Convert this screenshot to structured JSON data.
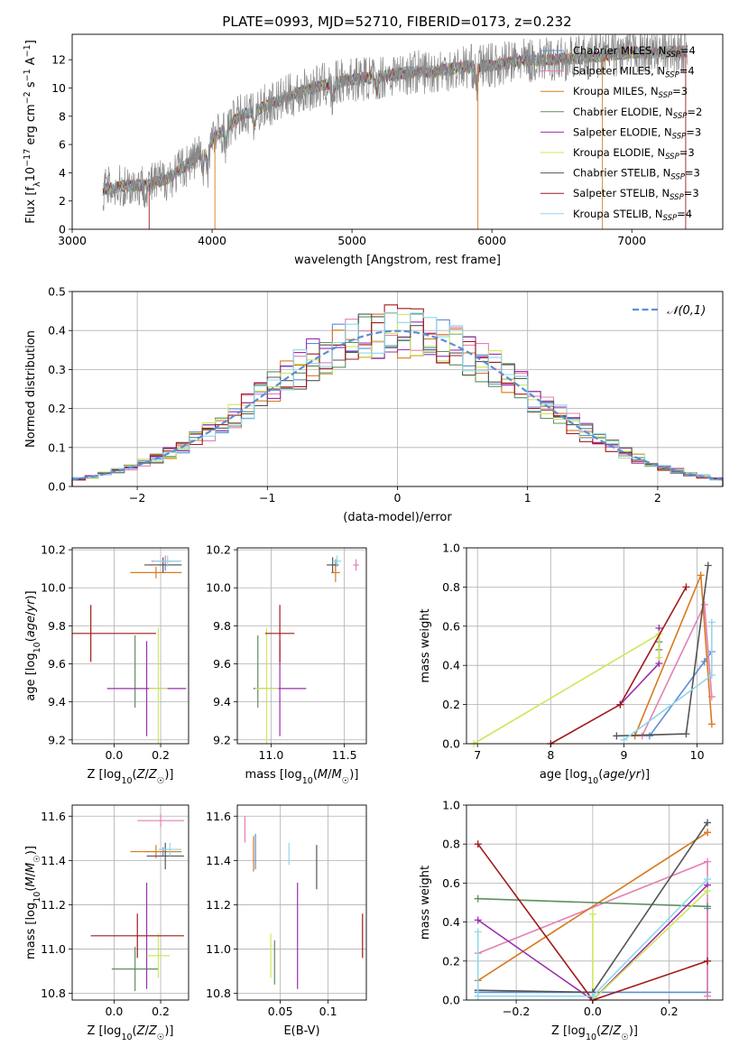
{
  "figure_title": "PLATE=0993, MJD=52710, FIBERID=0173, z=0.232",
  "colors": {
    "chab_miles": "#5b8ed6",
    "salp_miles": "#e57fb4",
    "krou_miles": "#d97a1f",
    "chab_elodie": "#5c8f5c",
    "salp_elodie": "#9b2fae",
    "krou_elodie": "#cce85a",
    "chab_stelib": "#555555",
    "salp_stelib": "#a01b1b",
    "krou_stelib": "#8fd8e8",
    "data": "#888888"
  },
  "chart_data": [
    {
      "id": "spectrum",
      "type": "line",
      "title": "PLATE=0993, MJD=52710, FIBERID=0173, z=0.232",
      "xlabel": "wavelength [Angstrom, rest frame]",
      "ylabel": "Flux [f_λ 10^-17 erg cm^-2 s^-1 A^-1]",
      "xlim": [
        3000,
        7650
      ],
      "ylim": [
        0,
        13.8
      ],
      "xticks": [
        3000,
        4000,
        5000,
        6000,
        7000
      ],
      "yticks": [
        0,
        2,
        4,
        6,
        8,
        10,
        12
      ],
      "continuum": {
        "x": [
          3220,
          3400,
          3550,
          3700,
          3850,
          3950,
          4050,
          4200,
          4400,
          4600,
          4800,
          5000,
          5200,
          5400,
          5600,
          5800,
          6000,
          6200,
          6400,
          6600,
          6800,
          7000,
          7200,
          7400
        ],
        "y": [
          2.8,
          3.1,
          3.1,
          3.7,
          4.8,
          5.8,
          6.8,
          8.0,
          8.8,
          9.6,
          10.2,
          10.6,
          10.8,
          11.1,
          11.2,
          11.5,
          11.6,
          11.9,
          12.0,
          12.1,
          12.3,
          12.5,
          12.5,
          12.6
        ]
      },
      "legend": [
        {
          "label": "Chabrier MILES, N_SSP=4",
          "color_key": "chab_miles"
        },
        {
          "label": "Salpeter MILES, N_SSP=4",
          "color_key": "salp_miles"
        },
        {
          "label": "Kroupa MILES, N_SSP=3",
          "color_key": "krou_miles"
        },
        {
          "label": "Chabrier ELODIE, N_SSP=2",
          "color_key": "chab_elodie"
        },
        {
          "label": "Salpeter ELODIE, N_SSP=3",
          "color_key": "salp_elodie"
        },
        {
          "label": "Kroupa ELODIE, N_SSP=3",
          "color_key": "krou_elodie"
        },
        {
          "label": "Chabrier STELIB, N_SSP=3",
          "color_key": "chab_stelib"
        },
        {
          "label": "Salpeter STELIB, N_SSP=3",
          "color_key": "salp_stelib"
        },
        {
          "label": "Kroupa STELIB, N_SSP=4",
          "color_key": "krou_stelib"
        }
      ],
      "legend_placement": "top-right"
    },
    {
      "id": "residuals",
      "type": "line",
      "xlabel": "(data-model)/error",
      "ylabel": "Normed distribution",
      "xlim": [
        -2.5,
        2.5
      ],
      "ylim": [
        0,
        0.5
      ],
      "xticks": [
        -2,
        -1,
        0,
        1,
        2
      ],
      "yticks": [
        0.0,
        0.1,
        0.2,
        0.3,
        0.4,
        0.5
      ],
      "grid": true,
      "bin_width": 0.1,
      "legend": [
        {
          "label": "𝒩(0,1)",
          "color": "#5b8ed6",
          "style": "dashed"
        }
      ],
      "legend_placement": "top-right"
    },
    {
      "id": "age_vs_Z",
      "type": "scatter",
      "xlabel": "Z [log10(Z/Z☉)]",
      "ylabel": "age [log10(age/yr)]",
      "xlim": [
        -0.18,
        0.32
      ],
      "ylim": [
        9.18,
        10.21
      ],
      "xticks": [
        0.0,
        0.2
      ],
      "yticks": [
        9.2,
        9.4,
        9.6,
        9.8,
        10.0,
        10.2
      ],
      "grid": true,
      "points": [
        {
          "k": "chab_miles",
          "x": 0.22,
          "y": 10.12,
          "xe": 0.07,
          "ye": 0.03
        },
        {
          "k": "salp_miles",
          "x": 0.22,
          "y": 10.14,
          "xe": 0.06,
          "ye": 0.03
        },
        {
          "k": "krou_miles",
          "x": 0.18,
          "y": 10.08,
          "xe": 0.11,
          "ye": 0.03
        },
        {
          "k": "chab_elodie",
          "x": 0.09,
          "y": 9.56,
          "xe": 0.0,
          "ye": 0.19
        },
        {
          "k": "salp_elodie",
          "x": 0.14,
          "y": 9.47,
          "xe": 0.17,
          "ye": 0.25
        },
        {
          "k": "krou_elodie",
          "x": 0.19,
          "y": 9.47,
          "xe": 0.04,
          "ye": 0.32
        },
        {
          "k": "chab_stelib",
          "x": 0.21,
          "y": 10.12,
          "xe": 0.08,
          "ye": 0.04
        },
        {
          "k": "salp_stelib",
          "x": -0.1,
          "y": 9.76,
          "xe": 0.28,
          "ye": 0.15
        },
        {
          "k": "krou_stelib",
          "x": 0.23,
          "y": 10.14,
          "xe": 0.06,
          "ye": 0.03
        }
      ]
    },
    {
      "id": "age_vs_mass",
      "type": "scatter",
      "xlabel": "mass [log10(M/M☉)]",
      "ylabel": "",
      "xlim": [
        10.77,
        11.65
      ],
      "ylim": [
        9.18,
        10.21
      ],
      "xticks": [
        11.0,
        11.5
      ],
      "yticks": [
        9.2,
        9.4,
        9.6,
        9.8,
        10.0,
        10.2
      ],
      "grid": true,
      "points": [
        {
          "k": "chab_miles",
          "x": 11.44,
          "y": 10.12,
          "xe": 0.02,
          "ye": 0.03
        },
        {
          "k": "salp_miles",
          "x": 11.58,
          "y": 10.12,
          "xe": 0.02,
          "ye": 0.03
        },
        {
          "k": "krou_miles",
          "x": 11.44,
          "y": 10.08,
          "xe": 0.03,
          "ye": 0.05
        },
        {
          "k": "chab_elodie",
          "x": 10.91,
          "y": 9.56,
          "xe": 0.0,
          "ye": 0.19
        },
        {
          "k": "salp_elodie",
          "x": 11.06,
          "y": 9.47,
          "xe": 0.18,
          "ye": 0.25
        },
        {
          "k": "krou_elodie",
          "x": 10.97,
          "y": 9.47,
          "xe": 0.08,
          "ye": 0.32
        },
        {
          "k": "chab_stelib",
          "x": 11.42,
          "y": 10.12,
          "xe": 0.04,
          "ye": 0.04
        },
        {
          "k": "salp_stelib",
          "x": 11.06,
          "y": 9.76,
          "xe": 0.1,
          "ye": 0.15
        },
        {
          "k": "krou_stelib",
          "x": 11.45,
          "y": 10.14,
          "xe": 0.03,
          "ye": 0.03
        }
      ]
    },
    {
      "id": "weight_vs_age",
      "type": "line",
      "xlabel": "age [log10(age/yr)]",
      "ylabel": "mass weight",
      "xlim": [
        6.85,
        10.35
      ],
      "ylim": [
        0,
        1
      ],
      "xticks": [
        7,
        8,
        9,
        10
      ],
      "yticks": [
        0.0,
        0.2,
        0.4,
        0.6,
        0.8,
        1.0
      ],
      "grid": true,
      "series": [
        {
          "k": "chab_miles",
          "x": [
            9.35,
            10.1,
            10.2
          ],
          "y": [
            0.04,
            0.42,
            0.47
          ]
        },
        {
          "k": "salp_miles",
          "x": [
            9.25,
            10.1,
            10.2
          ],
          "y": [
            0.04,
            0.71,
            0.24
          ]
        },
        {
          "k": "krou_miles",
          "x": [
            9.15,
            10.05,
            10.2
          ],
          "y": [
            0.04,
            0.86,
            0.1
          ]
        },
        {
          "k": "chab_elodie",
          "x": [
            9.48,
            9.48
          ],
          "y": [
            0.48,
            0.52
          ]
        },
        {
          "k": "salp_elodie",
          "x": [
            8.95,
            9.48,
            9.48
          ],
          "y": [
            0.2,
            0.41,
            0.59
          ]
        },
        {
          "k": "krou_elodie",
          "x": [
            6.95,
            9.48,
            9.48
          ],
          "y": [
            0.0,
            0.56,
            0.44
          ]
        },
        {
          "k": "chab_stelib",
          "x": [
            8.9,
            9.85,
            10.15
          ],
          "y": [
            0.04,
            0.05,
            0.91
          ]
        },
        {
          "k": "salp_stelib",
          "x": [
            8.0,
            8.95,
            9.85
          ],
          "y": [
            0.0,
            0.2,
            0.8
          ]
        },
        {
          "k": "krou_stelib",
          "x": [
            9.0,
            10.2,
            10.2
          ],
          "y": [
            0.02,
            0.35,
            0.62
          ]
        }
      ]
    },
    {
      "id": "mass_vs_Z",
      "type": "scatter",
      "xlabel": "Z [log10(Z/Z☉)]",
      "ylabel": "mass [log10(M/M☉)]",
      "xlim": [
        -0.18,
        0.32
      ],
      "ylim": [
        10.77,
        11.65
      ],
      "xticks": [
        0.0,
        0.2
      ],
      "yticks": [
        10.8,
        11.0,
        11.2,
        11.4,
        11.6
      ],
      "grid": true,
      "points": [
        {
          "k": "chab_miles",
          "x": 0.21,
          "y": 11.44,
          "xe": 0.08,
          "ye": 0.02
        },
        {
          "k": "salp_miles",
          "x": 0.2,
          "y": 11.58,
          "xe": 0.1,
          "ye": 0.03
        },
        {
          "k": "krou_miles",
          "x": 0.18,
          "y": 11.44,
          "xe": 0.11,
          "ye": 0.03
        },
        {
          "k": "chab_elodie",
          "x": 0.09,
          "y": 10.91,
          "xe": 0.1,
          "ye": 0.1
        },
        {
          "k": "salp_elodie",
          "x": 0.14,
          "y": 11.06,
          "xe": 0.0,
          "ye": 0.24
        },
        {
          "k": "krou_elodie",
          "x": 0.19,
          "y": 10.97,
          "xe": 0.05,
          "ye": 0.1
        },
        {
          "k": "chab_stelib",
          "x": 0.22,
          "y": 11.42,
          "xe": 0.08,
          "ye": 0.06
        },
        {
          "k": "salp_stelib",
          "x": 0.1,
          "y": 11.06,
          "xe": 0.2,
          "ye": 0.1
        },
        {
          "k": "krou_stelib",
          "x": 0.24,
          "y": 11.45,
          "xe": 0.05,
          "ye": 0.03
        }
      ]
    },
    {
      "id": "mass_vs_ebv",
      "type": "scatter",
      "xlabel": "E(B-V)",
      "ylabel": "",
      "xlim": [
        0.005,
        0.14
      ],
      "ylim": [
        10.77,
        11.65
      ],
      "xticks": [
        0.05,
        0.1
      ],
      "yticks": [
        10.8,
        11.0,
        11.2,
        11.4,
        11.6
      ],
      "grid": true,
      "points": [
        {
          "k": "chab_miles",
          "x": 0.024,
          "y": 11.44,
          "xe": 0.0,
          "ye": 0.08
        },
        {
          "k": "salp_miles",
          "x": 0.013,
          "y": 11.54,
          "xe": 0.0,
          "ye": 0.06
        },
        {
          "k": "krou_miles",
          "x": 0.022,
          "y": 11.43,
          "xe": 0.0,
          "ye": 0.08
        },
        {
          "k": "chab_elodie",
          "x": 0.044,
          "y": 10.94,
          "xe": 0.0,
          "ye": 0.1
        },
        {
          "k": "salp_elodie",
          "x": 0.068,
          "y": 11.06,
          "xe": 0.0,
          "ye": 0.24
        },
        {
          "k": "krou_elodie",
          "x": 0.04,
          "y": 10.97,
          "xe": 0.0,
          "ye": 0.1
        },
        {
          "k": "chab_stelib",
          "x": 0.088,
          "y": 11.37,
          "xe": 0.0,
          "ye": 0.1
        },
        {
          "k": "salp_stelib",
          "x": 0.136,
          "y": 11.06,
          "xe": 0.0,
          "ye": 0.1
        },
        {
          "k": "krou_stelib",
          "x": 0.059,
          "y": 11.43,
          "xe": 0.0,
          "ye": 0.05
        }
      ]
    },
    {
      "id": "weight_vs_Z",
      "type": "line",
      "xlabel": "Z [log10(Z/Z☉)]",
      "ylabel": "mass weight",
      "xlim": [
        -0.33,
        0.34
      ],
      "ylim": [
        0,
        1
      ],
      "xticks": [
        -0.2,
        0.0,
        0.2
      ],
      "yticks": [
        0.0,
        0.2,
        0.4,
        0.6,
        0.8,
        1.0
      ],
      "grid": true,
      "series": [
        {
          "k": "chab_miles",
          "x": [
            -0.3,
            0.3,
            0.3
          ],
          "y": [
            0.04,
            0.04,
            0.47
          ]
        },
        {
          "k": "salp_miles",
          "x": [
            -0.3,
            0.3,
            0.3
          ],
          "y": [
            0.24,
            0.71,
            0.02
          ]
        },
        {
          "k": "krou_miles",
          "x": [
            -0.3,
            0.3,
            0.3
          ],
          "y": [
            0.1,
            0.86,
            0.86
          ]
        },
        {
          "k": "chab_elodie",
          "x": [
            -0.3,
            0.3
          ],
          "y": [
            0.52,
            0.48
          ]
        },
        {
          "k": "salp_elodie",
          "x": [
            -0.3,
            0.0,
            0.3
          ],
          "y": [
            0.41,
            0.0,
            0.59
          ]
        },
        {
          "k": "krou_elodie",
          "x": [
            0.0,
            0.0,
            0.3
          ],
          "y": [
            0.44,
            0.0,
            0.56
          ]
        },
        {
          "k": "chab_stelib",
          "x": [
            -0.3,
            0.0,
            0.3
          ],
          "y": [
            0.05,
            0.04,
            0.91
          ]
        },
        {
          "k": "salp_stelib",
          "x": [
            -0.3,
            0.0,
            0.3
          ],
          "y": [
            0.8,
            0.0,
            0.2
          ]
        },
        {
          "k": "krou_stelib",
          "x": [
            -0.3,
            -0.3,
            0.0,
            0.3
          ],
          "y": [
            0.35,
            0.02,
            0.02,
            0.62
          ]
        }
      ]
    }
  ]
}
